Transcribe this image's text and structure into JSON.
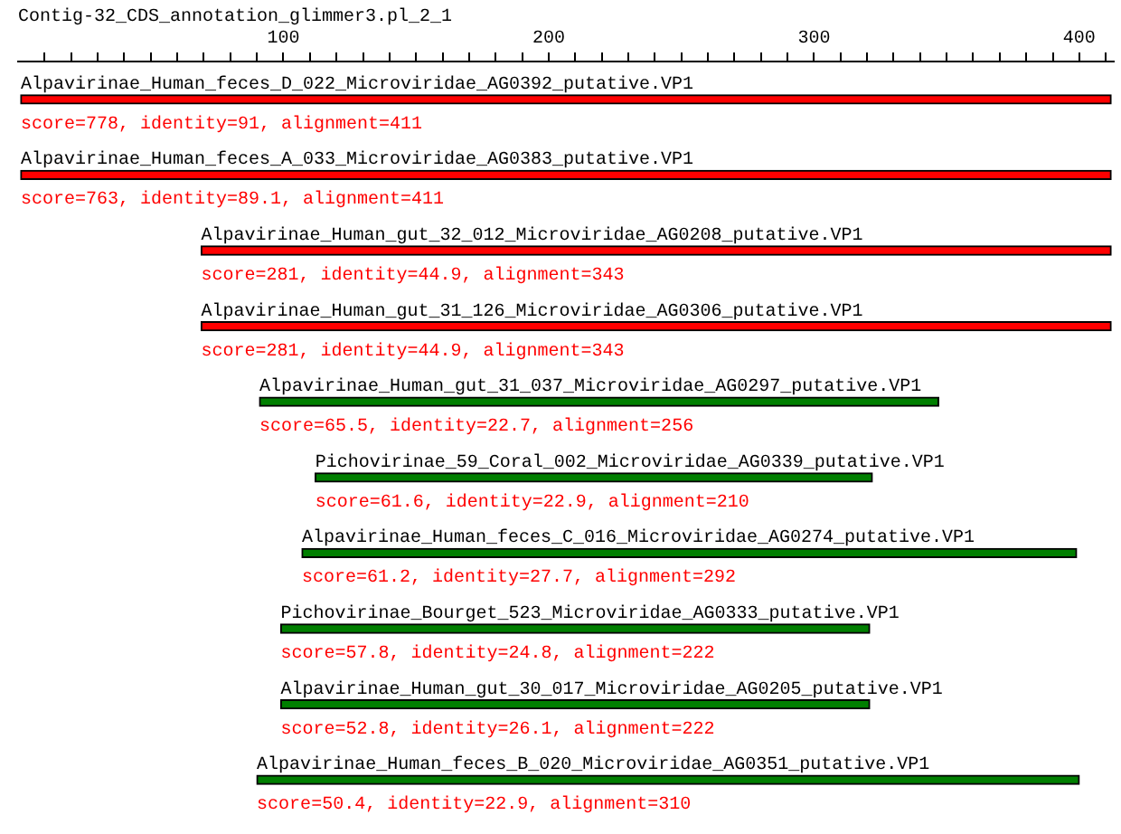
{
  "chart_data": {
    "type": "bar",
    "orientation": "horizontal",
    "title": "Contig-32_CDS_annotation_glimmer3.pl_2_1",
    "categories": [
      "Alpavirinae_Human_feces_D_022_Microviridae_AG0392_putative.VP1",
      "Alpavirinae_Human_feces_A_033_Microviridae_AG0383_putative.VP1",
      "Alpavirinae_Human_gut_32_012_Microviridae_AG0208_putative.VP1",
      "Alpavirinae_Human_gut_31_126_Microviridae_AG0306_putative.VP1",
      "Alpavirinae_Human_gut_31_037_Microviridae_AG0297_putative.VP1",
      "Pichovirinae_59_Coral_002_Microviridae_AG0339_putative.VP1",
      "Alpavirinae_Human_feces_C_016_Microviridae_AG0274_putative.VP1",
      "Pichovirinae_Bourget_523_Microviridae_AG0333_putative.VP1",
      "Alpavirinae_Human_gut_30_017_Microviridae_AG0205_putative.VP1",
      "Alpavirinae_Human_feces_B_020_Microviridae_AG0351_putative.VP1"
    ],
    "base": [
      1,
      1,
      69,
      69,
      91,
      112,
      107,
      99,
      99,
      90
    ],
    "values": [
      411,
      411,
      343,
      343,
      256,
      210,
      292,
      222,
      222,
      310
    ],
    "colors": [
      "#ff0000",
      "#ff0000",
      "#ff0000",
      "#ff0000",
      "#007f00",
      "#007f00",
      "#007f00",
      "#007f00",
      "#007f00",
      "#007f00"
    ],
    "annotations": [
      "score=778, identity=91, alignment=411",
      "score=763, identity=89.1, alignment=411",
      "score=281, identity=44.9, alignment=343",
      "score=281, identity=44.9, alignment=343",
      "score=65.5, identity=22.7, alignment=256",
      "score=61.6, identity=22.9, alignment=210",
      "score=61.2, identity=27.7, alignment=292",
      "score=57.8, identity=24.8, alignment=222",
      "score=52.8, identity=26.1, alignment=222",
      "score=50.4, identity=22.9, alignment=310"
    ],
    "xlim": [
      0,
      413
    ],
    "xticks": [
      {
        "value": 10,
        "label": null
      },
      {
        "value": 20,
        "label": null
      },
      {
        "value": 30,
        "label": null
      },
      {
        "value": 40,
        "label": null
      },
      {
        "value": 50,
        "label": null
      },
      {
        "value": 60,
        "label": null
      },
      {
        "value": 70,
        "label": null
      },
      {
        "value": 80,
        "label": null
      },
      {
        "value": 90,
        "label": null
      },
      100,
      {
        "value": 110,
        "label": null
      },
      {
        "value": 120,
        "label": null
      },
      {
        "value": 130,
        "label": null
      },
      {
        "value": 140,
        "label": null
      },
      {
        "value": 150,
        "label": null
      },
      {
        "value": 160,
        "label": null
      },
      {
        "value": 170,
        "label": null
      },
      {
        "value": 180,
        "label": null
      },
      {
        "value": 190,
        "label": null
      },
      200,
      {
        "value": 210,
        "label": null
      },
      {
        "value": 220,
        "label": null
      },
      {
        "value": 230,
        "label": null
      },
      {
        "value": 240,
        "label": null
      },
      {
        "value": 250,
        "label": null
      },
      {
        "value": 260,
        "label": null
      },
      {
        "value": 270,
        "label": null
      },
      {
        "value": 280,
        "label": null
      },
      {
        "value": 290,
        "label": null
      },
      300,
      {
        "value": 310,
        "label": null
      },
      {
        "value": 320,
        "label": null
      },
      {
        "value": 330,
        "label": null
      },
      {
        "value": 340,
        "label": null
      },
      {
        "value": 350,
        "label": null
      },
      {
        "value": 360,
        "label": null
      },
      {
        "value": 370,
        "label": null
      },
      {
        "value": 380,
        "label": null
      },
      {
        "value": 390,
        "label": null
      },
      400,
      {
        "value": 410,
        "label": null
      }
    ],
    "grid": false,
    "legend": false
  }
}
